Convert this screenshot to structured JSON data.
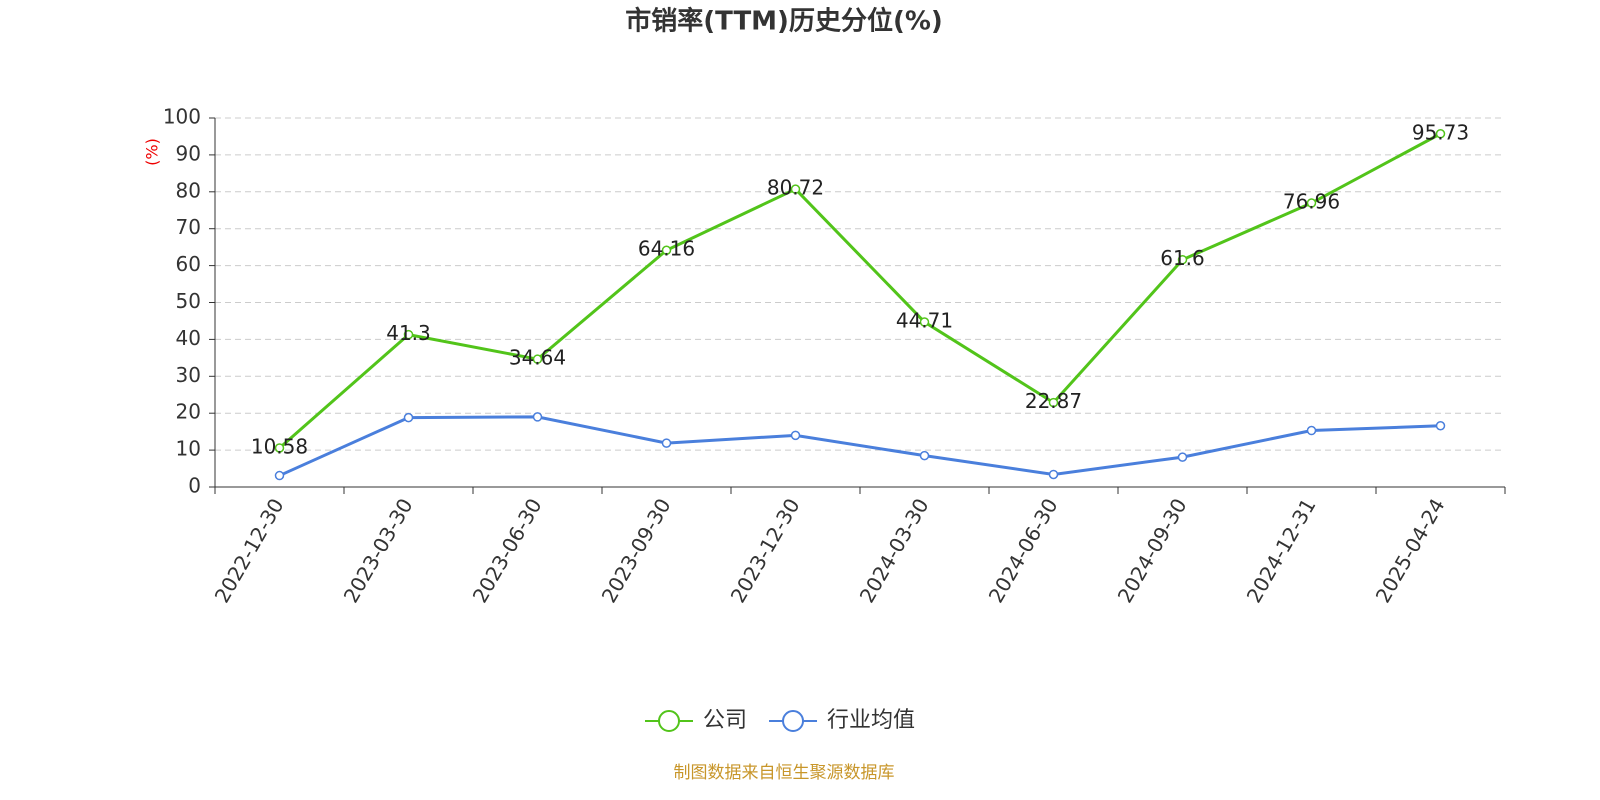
{
  "chart_data": {
    "type": "line",
    "title": "市销率(TTM)历史分位(%)",
    "y_label": "(%)",
    "categories": [
      "2022-12-30",
      "2023-03-30",
      "2023-06-30",
      "2023-09-30",
      "2023-12-30",
      "2024-03-30",
      "2024-06-30",
      "2024-09-30",
      "2024-12-31",
      "2025-04-24"
    ],
    "series": [
      {
        "name": "公司",
        "color": "#52c41a",
        "values": [
          10.58,
          41.3,
          34.64,
          64.16,
          80.72,
          44.71,
          22.87,
          61.6,
          76.96,
          95.73
        ],
        "show_labels": true
      },
      {
        "name": "行业均值",
        "color": "#4a7fdc",
        "values": [
          3.1,
          18.8,
          19.0,
          11.9,
          14.0,
          8.5,
          3.4,
          8.1,
          15.3,
          16.6
        ],
        "show_labels": false
      }
    ],
    "ylim": [
      0,
      100
    ],
    "yticks": [
      0,
      10,
      20,
      30,
      40,
      50,
      60,
      70,
      80,
      90,
      100
    ],
    "grid": true,
    "legend": "bottom",
    "footer": "制图数据来自恒生聚源数据库"
  }
}
